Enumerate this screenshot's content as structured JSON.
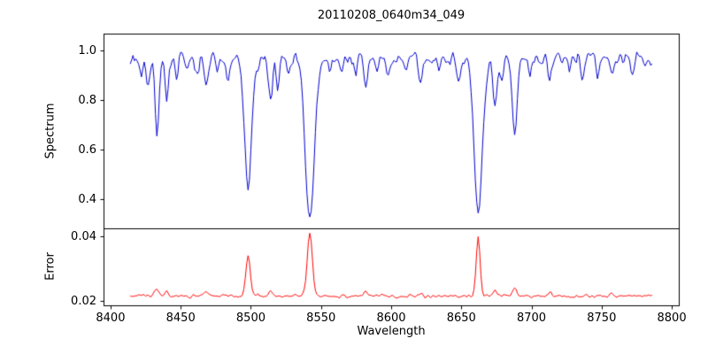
{
  "chart_data": {
    "type": "line",
    "title": "20110208_0640m34_049",
    "xlabel": "Wavelength",
    "xlim": [
      8395,
      8805
    ],
    "xticks": {
      "values": [
        8400,
        8450,
        8500,
        8550,
        8600,
        8650,
        8700,
        8750,
        8800
      ],
      "labels": [
        "8400",
        "8450",
        "8500",
        "8550",
        "8600",
        "8650",
        "8700",
        "8750",
        "8800"
      ]
    },
    "noise_seed": 7,
    "top": {
      "ylabel": "Spectrum",
      "ylim": [
        0.28,
        1.07
      ],
      "yticks": {
        "values": [
          0.4,
          0.6,
          0.8,
          1.0
        ],
        "labels": [
          "0.4",
          "0.6",
          "0.8",
          "1.0"
        ]
      },
      "color": "#0000cd",
      "series": {
        "x_start": 8414,
        "x_end": 8786,
        "x_step": 1,
        "continuum": 0.968,
        "noise_amplitude": 0.045,
        "lines_format": "[center_angstrom, depth, sigma_angstrom]",
        "absorption_lines": [
          [
            8422,
            0.06,
            1.2
          ],
          [
            8427,
            0.1,
            1.3
          ],
          [
            8433,
            0.3,
            1.4
          ],
          [
            8440,
            0.15,
            1.3
          ],
          [
            8447,
            0.09,
            1.2
          ],
          [
            8455,
            0.06,
            1.1
          ],
          [
            8462,
            0.07,
            1.1
          ],
          [
            8468,
            0.12,
            1.4
          ],
          [
            8476,
            0.06,
            1.1
          ],
          [
            8484,
            0.07,
            1.1
          ],
          [
            8498,
            0.53,
            2.5
          ],
          [
            8505,
            0.06,
            1.0
          ],
          [
            8514,
            0.17,
            1.4
          ],
          [
            8519,
            0.13,
            1.2
          ],
          [
            8527,
            0.07,
            1.1
          ],
          [
            8542,
            0.65,
            3.2
          ],
          [
            8556,
            0.05,
            1.0
          ],
          [
            8565,
            0.05,
            1.0
          ],
          [
            8575,
            0.06,
            1.0
          ],
          [
            8582,
            0.11,
            1.3
          ],
          [
            8590,
            0.05,
            1.0
          ],
          [
            8598,
            0.08,
            1.2
          ],
          [
            8611,
            0.06,
            1.0
          ],
          [
            8621,
            0.1,
            1.3
          ],
          [
            8634,
            0.05,
            1.0
          ],
          [
            8648,
            0.08,
            1.1
          ],
          [
            8662,
            0.62,
            3.0
          ],
          [
            8674,
            0.22,
            1.5
          ],
          [
            8679,
            0.1,
            1.2
          ],
          [
            8688,
            0.32,
            1.7
          ],
          [
            8699,
            0.06,
            1.0
          ],
          [
            8713,
            0.08,
            1.1
          ],
          [
            8727,
            0.05,
            1.0
          ],
          [
            8736,
            0.07,
            1.1
          ],
          [
            8747,
            0.05,
            1.0
          ],
          [
            8757,
            0.07,
            1.1
          ],
          [
            8772,
            0.05,
            1.0
          ]
        ]
      }
    },
    "bottom": {
      "ylabel": "Error",
      "ylim": [
        0.0185,
        0.0425
      ],
      "yticks": {
        "values": [
          0.02,
          0.04
        ],
        "labels": [
          "0.02",
          "0.04"
        ]
      },
      "color": "#ff0000",
      "series": {
        "x_start": 8414,
        "x_end": 8786,
        "x_step": 1,
        "baseline": 0.0214,
        "noise_amplitude": 0.0009,
        "peaks_format": "[center_angstrom, height, sigma_angstrom]",
        "peaks": [
          [
            8433,
            0.0025,
            1.3
          ],
          [
            8440,
            0.0015,
            1.2
          ],
          [
            8468,
            0.0012,
            1.2
          ],
          [
            8498,
            0.0125,
            1.6
          ],
          [
            8514,
            0.0015,
            1.2
          ],
          [
            8542,
            0.0195,
            1.8
          ],
          [
            8582,
            0.0015,
            1.2
          ],
          [
            8621,
            0.0012,
            1.2
          ],
          [
            8662,
            0.0185,
            1.4
          ],
          [
            8674,
            0.002,
            1.2
          ],
          [
            8688,
            0.003,
            1.3
          ],
          [
            8713,
            0.0012,
            1.1
          ],
          [
            8757,
            0.001,
            1.1
          ]
        ]
      }
    }
  }
}
